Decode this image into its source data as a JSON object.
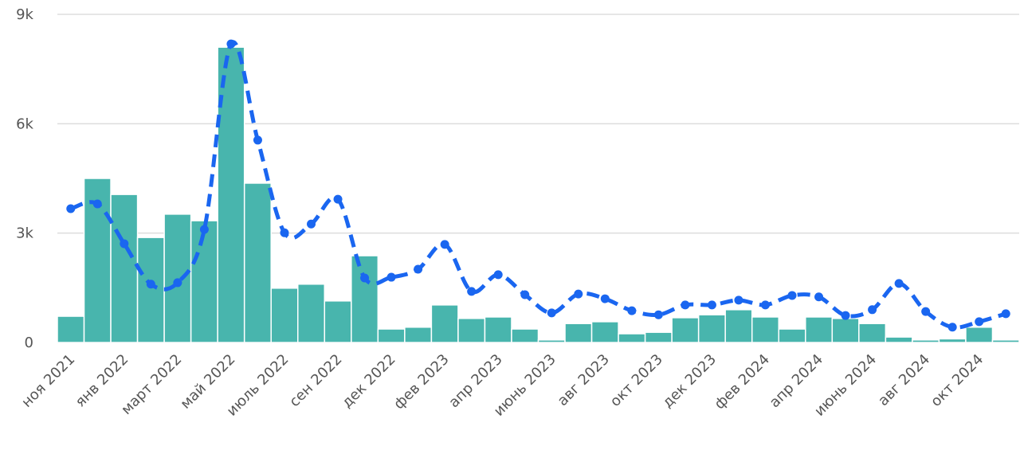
{
  "chart_data": {
    "type": "bar-line",
    "categories": [
      "ноя 2021",
      null,
      "янв 2022",
      null,
      "март 2022",
      null,
      "май 2022",
      null,
      "июль 2022",
      null,
      "сен 2022",
      null,
      "дек 2022",
      null,
      "фев 2023",
      null,
      "апр 2023",
      null,
      "июнь 2023",
      null,
      "авг 2023",
      null,
      "окт 2023",
      null,
      "дек 2023",
      null,
      "фев 2024",
      null,
      "апр 2024",
      null,
      "июнь 2024",
      null,
      "авг 2024",
      null,
      "окт 2024",
      null
    ],
    "series": [
      {
        "type": "bar",
        "color": "#48b5ad",
        "values": [
          720,
          4500,
          4060,
          2880,
          3520,
          3340,
          8100,
          4370,
          1490,
          1600,
          1140,
          2380,
          370,
          420,
          1030,
          660,
          700,
          370,
          70,
          520,
          570,
          240,
          280,
          680,
          760,
          900,
          700,
          370,
          700,
          660,
          520,
          150,
          70,
          100,
          420,
          70
        ]
      },
      {
        "type": "line",
        "color": "#1a66f0",
        "values": [
          3670,
          3800,
          2710,
          1600,
          1640,
          3100,
          8190,
          5550,
          3010,
          3250,
          3930,
          1770,
          1790,
          2010,
          2690,
          1400,
          1860,
          1310,
          810,
          1330,
          1200,
          870,
          760,
          1030,
          1030,
          1160,
          1030,
          1290,
          1250,
          740,
          900,
          1620,
          850,
          420,
          570,
          790
        ]
      }
    ],
    "ylim": [
      0,
      9000
    ],
    "yticks": [
      0,
      {
        "value": 3000,
        "label": "3k"
      },
      {
        "value": 6000,
        "label": "6k"
      },
      {
        "value": 9000,
        "label": "9k"
      }
    ],
    "grid": true
  }
}
